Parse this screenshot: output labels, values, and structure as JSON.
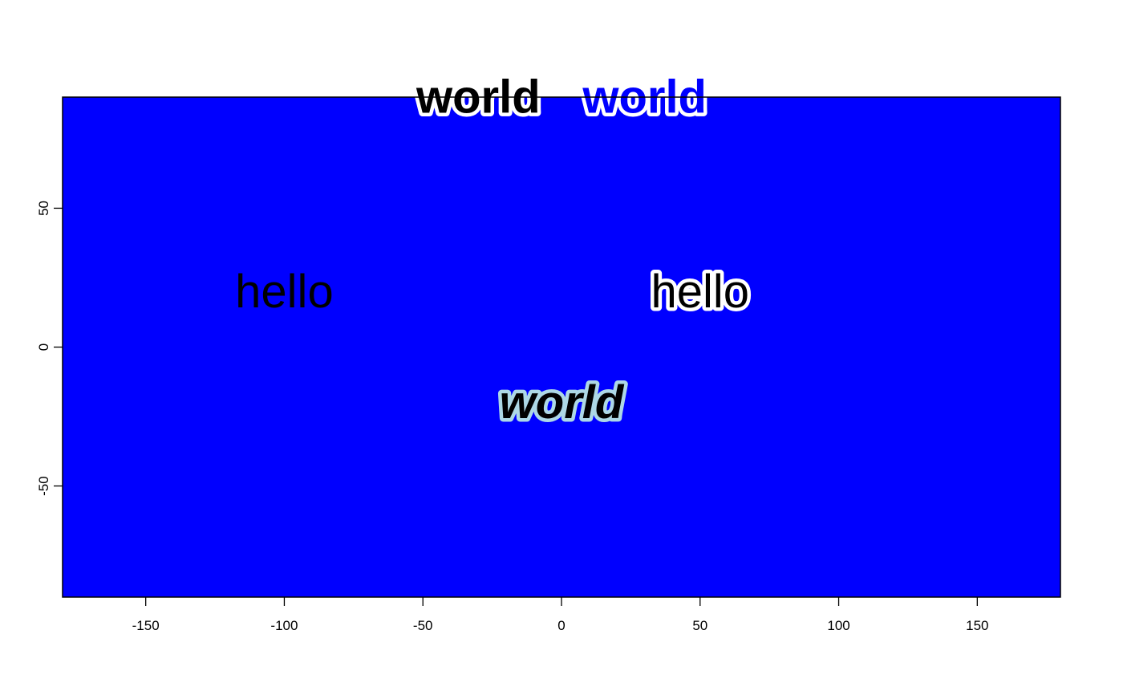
{
  "chart_data": {
    "type": "scatter",
    "title": "",
    "xlabel": "",
    "ylabel": "",
    "xlim": [
      -180,
      180
    ],
    "ylim": [
      -90,
      90
    ],
    "panel_background": "#0000ff",
    "grid": false,
    "legend": "none",
    "x_ticks": [
      -150,
      -100,
      -50,
      0,
      50,
      100,
      150
    ],
    "x_tick_labels": [
      "-150",
      "-100",
      "-50",
      "0",
      "50",
      "100",
      "150"
    ],
    "y_ticks": [
      -50,
      0,
      50
    ],
    "y_tick_labels": [
      "-50",
      "0",
      "50"
    ],
    "annotations": [
      {
        "text": "hello",
        "x": -100,
        "y": 20,
        "color": "#000000",
        "halo": "none",
        "weight": "normal",
        "style": "normal"
      },
      {
        "text": "hello",
        "x": 50,
        "y": 20,
        "color": "#000000",
        "halo": "#ffffff",
        "weight": "normal",
        "style": "normal"
      },
      {
        "text": "world",
        "x": 0,
        "y": -20,
        "color": "#000000",
        "halo": "#add8e6",
        "weight": "bold",
        "style": "italic"
      },
      {
        "text": "world",
        "x": -30,
        "y": 90,
        "color": "#000000",
        "halo": "#ffffff",
        "weight": "bold",
        "style": "normal"
      },
      {
        "text": "world",
        "x": 30,
        "y": 90,
        "color": "#0000ff",
        "halo": "#ffffff",
        "weight": "bold",
        "style": "normal"
      }
    ]
  }
}
